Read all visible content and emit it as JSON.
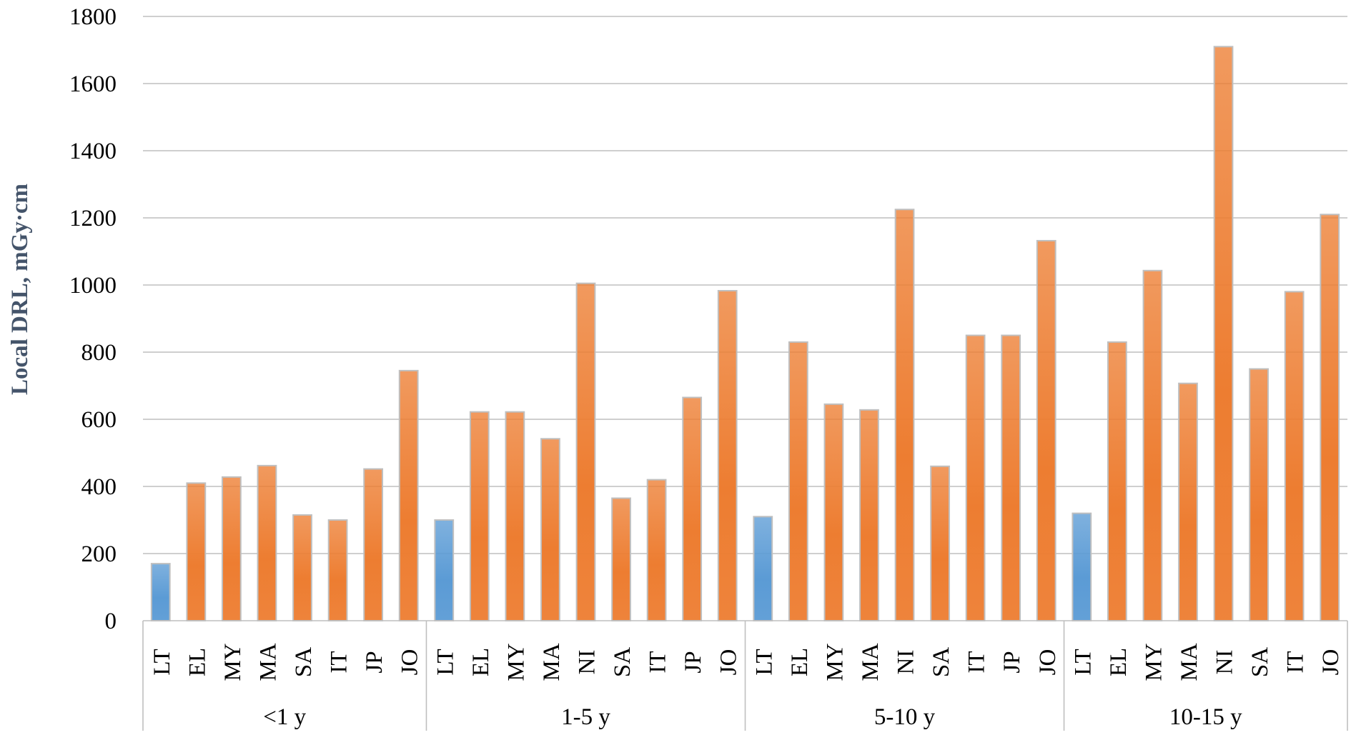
{
  "chart_data": {
    "type": "bar",
    "title": "",
    "xlabel": "",
    "ylabel": "Local  DRL, mGy·cm",
    "ylim": [
      0,
      1800
    ],
    "yticks": [
      0,
      200,
      400,
      600,
      800,
      1000,
      1200,
      1400,
      1600,
      1800
    ],
    "grid": true,
    "legend": "none",
    "colors": {
      "highlight": "#5B9BD5",
      "default": "#ED7D31"
    },
    "groups": [
      {
        "label": "<1 y",
        "categories": [
          "LT",
          "EL",
          "MY",
          "MA",
          "SA",
          "IT",
          "JP",
          "JO"
        ],
        "values": [
          170,
          410,
          428,
          462,
          315,
          300,
          452,
          745
        ]
      },
      {
        "label": "1-5 y",
        "categories": [
          "LT",
          "EL",
          "MY",
          "MA",
          "NI",
          "SA",
          "IT",
          "JP",
          "JO"
        ],
        "values": [
          300,
          622,
          622,
          542,
          1005,
          365,
          420,
          665,
          983
        ]
      },
      {
        "label": "5-10 y",
        "categories": [
          "LT",
          "EL",
          "MY",
          "MA",
          "NI",
          "SA",
          "IT",
          "JP",
          "JO"
        ],
        "values": [
          310,
          830,
          645,
          628,
          1225,
          460,
          850,
          850,
          1132
        ]
      },
      {
        "label": "10-15 y",
        "categories": [
          "LT",
          "EL",
          "MY",
          "MA",
          "NI",
          "SA",
          "IT",
          "JO"
        ],
        "values": [
          320,
          830,
          1043,
          707,
          1710,
          750,
          980,
          1210
        ]
      }
    ],
    "highlight_category": "LT"
  }
}
